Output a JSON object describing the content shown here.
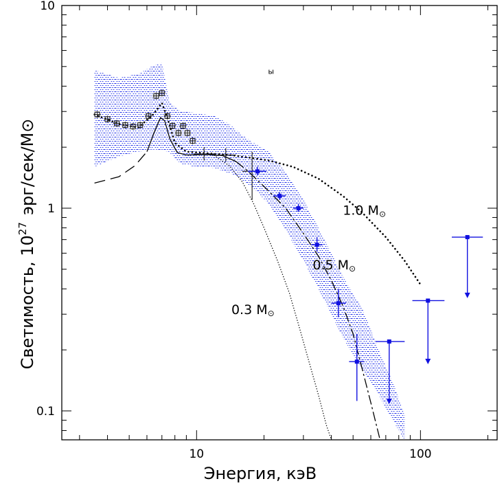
{
  "chart_data": {
    "type": "scatter",
    "xlabel": "Энергия, кэВ",
    "ylabel_main": "Светимость, 10",
    "ylabel_exp": "27",
    "ylabel_units": "эрг/сек/M",
    "ylabel_sym": "⊙",
    "x_scale": "log",
    "y_scale": "log",
    "xlim": [
      2.5,
      220
    ],
    "ylim": [
      0.072,
      10
    ],
    "x_ticks": [
      {
        "value": 10,
        "label": "10"
      },
      {
        "value": 100,
        "label": "100"
      }
    ],
    "y_ticks": [
      {
        "value": 0.1,
        "label": "0.1"
      },
      {
        "value": 1,
        "label": "1"
      },
      {
        "value": 10,
        "label": "10"
      }
    ],
    "colors": {
      "axis": "#000000",
      "model": "#000000",
      "data_blue": "#1010e0",
      "data_black": "#222222",
      "hatch": "#2030e8"
    },
    "band": {
      "description": "hatched uncertainty region",
      "upper": [
        [
          3.5,
          4.8
        ],
        [
          4.5,
          4.4
        ],
        [
          5.5,
          4.6
        ],
        [
          6.3,
          5.0
        ],
        [
          7.0,
          5.2
        ],
        [
          7.6,
          3.3
        ],
        [
          8.5,
          3.0
        ],
        [
          10,
          2.95
        ],
        [
          12,
          2.85
        ],
        [
          14,
          2.6
        ],
        [
          16,
          2.3
        ],
        [
          18,
          2.1
        ],
        [
          21,
          1.9
        ],
        [
          25,
          1.5
        ],
        [
          30,
          1.1
        ],
        [
          35,
          0.8
        ],
        [
          40,
          0.6
        ],
        [
          45,
          0.46
        ],
        [
          55,
          0.32
        ],
        [
          65,
          0.2
        ],
        [
          75,
          0.14
        ],
        [
          85,
          0.095
        ]
      ],
      "lower": [
        [
          85,
          0.072
        ],
        [
          75,
          0.09
        ],
        [
          65,
          0.12
        ],
        [
          55,
          0.16
        ],
        [
          45,
          0.23
        ],
        [
          40,
          0.3
        ],
        [
          35,
          0.4
        ],
        [
          30,
          0.55
        ],
        [
          25,
          0.78
        ],
        [
          21,
          1.05
        ],
        [
          18,
          1.25
        ],
        [
          15,
          1.45
        ],
        [
          12,
          1.58
        ],
        [
          10,
          1.6
        ],
        [
          8.5,
          1.65
        ],
        [
          7.5,
          1.9
        ],
        [
          6.5,
          1.95
        ],
        [
          5.5,
          1.9
        ],
        [
          4.5,
          1.8
        ],
        [
          3.5,
          1.6
        ]
      ]
    },
    "curves": [
      {
        "label": "1.0 M",
        "style": "dotted-thick",
        "points": [
          [
            3.5,
            2.9
          ],
          [
            4.5,
            2.6
          ],
          [
            5.5,
            2.5
          ],
          [
            6.4,
            2.9
          ],
          [
            7.0,
            3.3
          ],
          [
            7.4,
            2.8
          ],
          [
            8.0,
            2.1
          ],
          [
            9.0,
            1.9
          ],
          [
            11,
            1.87
          ],
          [
            14,
            1.83
          ],
          [
            17,
            1.78
          ],
          [
            21,
            1.72
          ],
          [
            27,
            1.6
          ],
          [
            35,
            1.4
          ],
          [
            45,
            1.15
          ],
          [
            55,
            0.95
          ],
          [
            70,
            0.72
          ],
          [
            85,
            0.55
          ],
          [
            100,
            0.42
          ]
        ]
      },
      {
        "label": "0.5 M",
        "style": "solid-then-dashdot",
        "points": [
          [
            3.5,
            1.33
          ],
          [
            4.5,
            1.43
          ],
          [
            5.3,
            1.62
          ],
          [
            6.0,
            1.9
          ],
          [
            6.5,
            2.4
          ],
          [
            6.9,
            2.8
          ],
          [
            7.2,
            2.7
          ],
          [
            7.6,
            2.2
          ],
          [
            8.2,
            1.88
          ],
          [
            9.0,
            1.83
          ],
          [
            11,
            1.84
          ],
          [
            13,
            1.82
          ],
          [
            15,
            1.7
          ],
          [
            17,
            1.52
          ],
          [
            20,
            1.28
          ],
          [
            25,
            1.0
          ],
          [
            30,
            0.75
          ],
          [
            35,
            0.58
          ],
          [
            40,
            0.44
          ],
          [
            45,
            0.33
          ],
          [
            50,
            0.24
          ],
          [
            55,
            0.16
          ],
          [
            60,
            0.11
          ],
          [
            66,
            0.072
          ]
        ]
      },
      {
        "label": "0.3 M",
        "style": "dotted-thin",
        "points": [
          [
            12,
            1.82
          ],
          [
            14,
            1.62
          ],
          [
            16,
            1.35
          ],
          [
            18,
            1.05
          ],
          [
            20,
            0.8
          ],
          [
            23,
            0.55
          ],
          [
            26,
            0.38
          ],
          [
            29,
            0.25
          ],
          [
            32,
            0.17
          ],
          [
            35,
            0.12
          ],
          [
            38,
            0.085
          ],
          [
            40,
            0.072
          ]
        ]
      }
    ],
    "curve_label_text": [
      {
        "text": "1.0 M",
        "sym": "⊙",
        "x": 45,
        "y": 0.93
      },
      {
        "text": "0.5 M",
        "sym": "⊙",
        "x": 33,
        "y": 0.5
      },
      {
        "text": "0.3 M",
        "sym": "⊙",
        "x": 14.3,
        "y": 0.3
      }
    ],
    "series_black": [
      {
        "x": 3.6,
        "y": 2.9
      },
      {
        "x": 4.0,
        "y": 2.75
      },
      {
        "x": 4.4,
        "y": 2.62
      },
      {
        "x": 4.8,
        "y": 2.57
      },
      {
        "x": 5.2,
        "y": 2.53
      },
      {
        "x": 5.6,
        "y": 2.57
      },
      {
        "x": 6.1,
        "y": 2.85
      },
      {
        "x": 6.6,
        "y": 3.58
      },
      {
        "x": 7.0,
        "y": 3.7
      },
      {
        "x": 7.4,
        "y": 2.85
      },
      {
        "x": 7.8,
        "y": 2.55
      },
      {
        "x": 8.3,
        "y": 2.35
      },
      {
        "x": 8.7,
        "y": 2.55
      },
      {
        "x": 9.1,
        "y": 2.35
      },
      {
        "x": 9.6,
        "y": 2.15
      },
      {
        "x": 10.8,
        "y": 1.85,
        "xerr": [
          9.7,
          12.2
        ],
        "yerr": [
          1.72,
          2.0
        ]
      },
      {
        "x": 13.5,
        "y": 1.83,
        "xerr": [
          12.2,
          15.0
        ],
        "yerr": [
          1.7,
          1.98
        ]
      },
      {
        "x": 17.7,
        "y": 1.52,
        "xerr": [
          16.0,
          19.5
        ],
        "yerr": [
          1.1,
          1.9
        ]
      }
    ],
    "series_blue": [
      {
        "x": 18.7,
        "y": 1.52,
        "xerr": [
          17.0,
          20.5
        ],
        "yerr": [
          1.45,
          1.6
        ]
      },
      {
        "x": 23.5,
        "y": 1.15,
        "xerr": [
          22.0,
          25.0
        ],
        "yerr": [
          1.1,
          1.2
        ]
      },
      {
        "x": 28.5,
        "y": 1.0,
        "xerr": [
          27.0,
          30.0
        ],
        "yerr": [
          0.96,
          1.05
        ]
      },
      {
        "x": 34.5,
        "y": 0.66,
        "xerr": [
          32.5,
          36.5
        ],
        "yerr": [
          0.61,
          0.72
        ]
      },
      {
        "x": 43.0,
        "y": 0.34,
        "xerr": [
          40.0,
          46.5
        ],
        "yerr": [
          0.29,
          0.4
        ]
      },
      {
        "x": 52.0,
        "y": 0.175,
        "xerr": [
          48.0,
          56.0
        ],
        "yerr": [
          0.112,
          0.24
        ]
      },
      {
        "x": 72.5,
        "y": 0.22,
        "xerr": [
          63.0,
          85.0
        ],
        "upper_limit_to": 0.108
      },
      {
        "x": 108.0,
        "y": 0.35,
        "xerr": [
          92.0,
          128.0
        ],
        "upper_limit_to": 0.17
      },
      {
        "x": 162.0,
        "y": 0.72,
        "xerr": [
          138.0,
          190.0
        ],
        "upper_limit_to": 0.36
      }
    ],
    "stray_mark": {
      "text": "ы",
      "x": 21.5,
      "y": 4.6
    }
  }
}
